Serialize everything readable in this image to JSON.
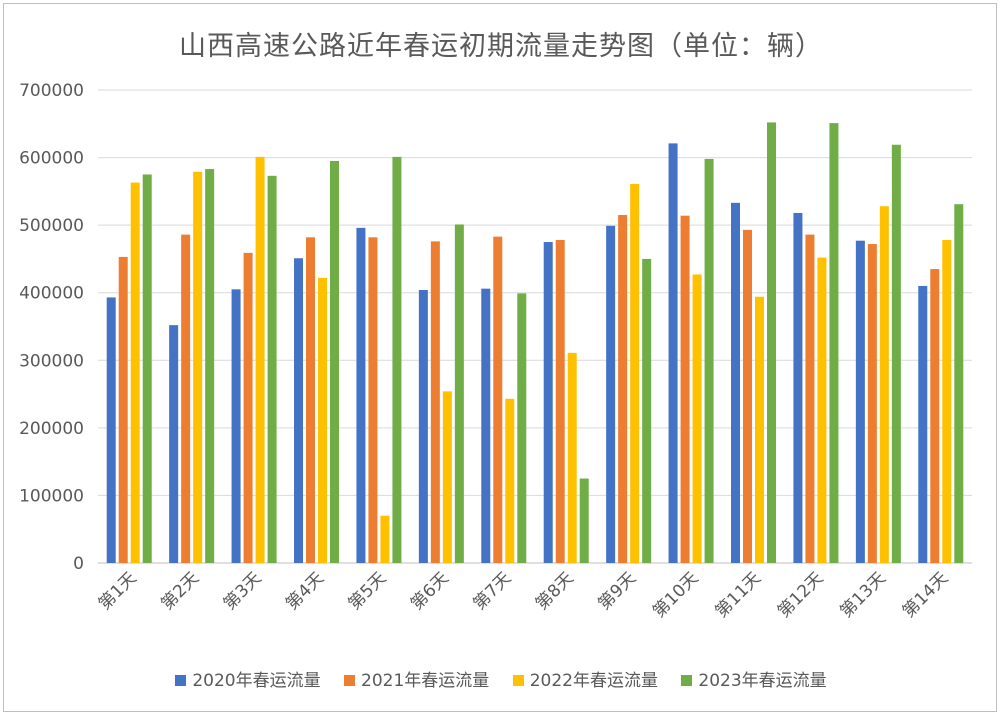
{
  "chart_data": {
    "type": "bar",
    "title": "山西高速公路近年春运初期流量走势图（单位：辆）",
    "xlabel": "",
    "ylabel": "",
    "ylim": [
      0,
      700000
    ],
    "yticks": [
      "0",
      "100000",
      "200000",
      "300000",
      "400000",
      "500000",
      "600000",
      "700000"
    ],
    "categories": [
      "第1天",
      "第2天",
      "第3天",
      "第4天",
      "第5天",
      "第6天",
      "第7天",
      "第8天",
      "第9天",
      "第10天",
      "第11天",
      "第12天",
      "第13天",
      "第14天"
    ],
    "grid": true,
    "legend_position": "bottom",
    "series": [
      {
        "name": "2020年春运流量",
        "color": "#4472c4",
        "values": [
          393000,
          352000,
          405000,
          451000,
          496000,
          404000,
          406000,
          475000,
          499000,
          621000,
          533000,
          518000,
          477000,
          410000
        ]
      },
      {
        "name": "2021年春运流量",
        "color": "#ed7d31",
        "values": [
          453000,
          486000,
          459000,
          482000,
          482000,
          476000,
          483000,
          478000,
          515000,
          514000,
          493000,
          486000,
          472000,
          435000
        ]
      },
      {
        "name": "2022年春运流量",
        "color": "#ffc000",
        "values": [
          563000,
          579000,
          601000,
          422000,
          70000,
          254000,
          243000,
          311000,
          561000,
          427000,
          394000,
          452000,
          528000,
          478000
        ]
      },
      {
        "name": "2023年春运流量",
        "color": "#70ad47",
        "values": [
          575000,
          583000,
          573000,
          595000,
          601000,
          501000,
          399000,
          125000,
          450000,
          598000,
          652000,
          651000,
          619000,
          531000
        ]
      }
    ]
  }
}
